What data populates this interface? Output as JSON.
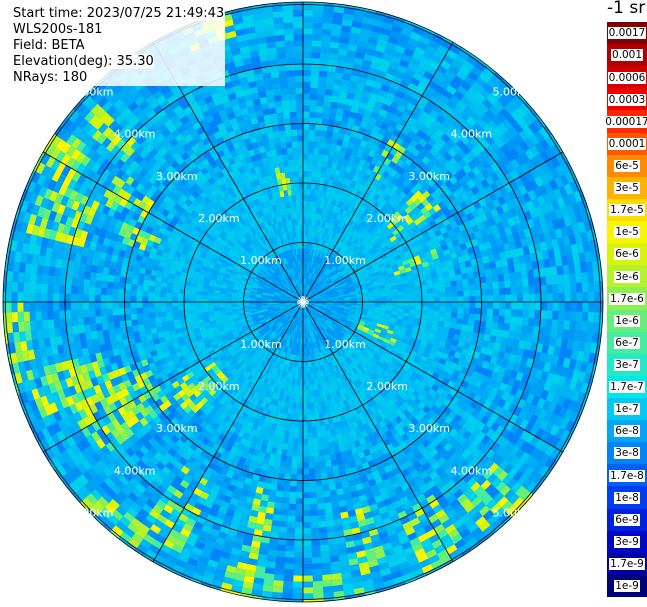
{
  "header": {
    "start_time": "Start time: 2023/07/25 21:49:43",
    "instrument": "WLS200s-181",
    "field": "Field: BETA",
    "elevation": "Elevation(deg): 35.30",
    "nrays": "NRays: 180"
  },
  "legend": {
    "unit_title": "-1 sr",
    "levels": [
      {
        "label": "0.0017",
        "color": "#800000"
      },
      {
        "label": "0.001",
        "color": "#b00000"
      },
      {
        "label": "0.0006",
        "color": "#d00000"
      },
      {
        "label": "0.0003",
        "color": "#ee0000"
      },
      {
        "label": "0.00017",
        "color": "#ff2600"
      },
      {
        "label": "0.0001",
        "color": "#ff5a00"
      },
      {
        "label": "6e-5",
        "color": "#ff8a00"
      },
      {
        "label": "3e-5",
        "color": "#ffb300"
      },
      {
        "label": "1.7e-5",
        "color": "#ffdc00"
      },
      {
        "label": "1e-5",
        "color": "#f6f600"
      },
      {
        "label": "6e-6",
        "color": "#d8f40a"
      },
      {
        "label": "3e-6",
        "color": "#b6f22a"
      },
      {
        "label": "1.7e-6",
        "color": "#8cf050"
      },
      {
        "label": "1e-6",
        "color": "#66ee7a"
      },
      {
        "label": "6e-7",
        "color": "#44eca0"
      },
      {
        "label": "3e-7",
        "color": "#22eac6"
      },
      {
        "label": "1.7e-7",
        "color": "#00e6ea"
      },
      {
        "label": "1e-7",
        "color": "#00c8f2"
      },
      {
        "label": "6e-8",
        "color": "#00a6f6"
      },
      {
        "label": "3e-8",
        "color": "#0084f8"
      },
      {
        "label": "1.7e-8",
        "color": "#0060f8"
      },
      {
        "label": "1e-8",
        "color": "#003cf0"
      },
      {
        "label": "6e-9",
        "color": "#0020e0"
      },
      {
        "label": "3e-9",
        "color": "#0008c8"
      },
      {
        "label": "1.7e-9",
        "color": "#0000a0"
      },
      {
        "label": "1e-9",
        "color": "#00007a"
      }
    ]
  },
  "range_rings": [
    "1.00km",
    "2.00km",
    "3.00km",
    "4.00km",
    "5.00km"
  ]
}
